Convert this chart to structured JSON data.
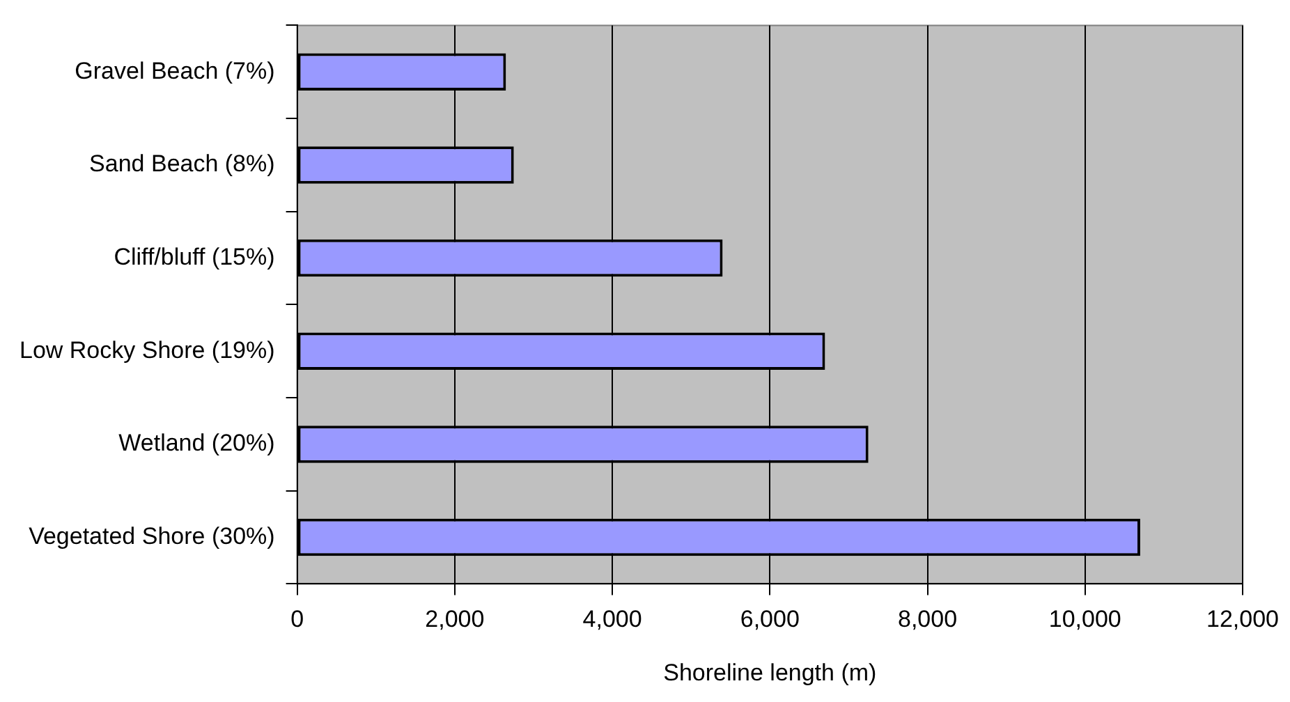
{
  "chart_data": {
    "type": "bar",
    "orientation": "horizontal",
    "xlabel": "Shoreline length (m)",
    "categories": [
      "Gravel Beach (7%)",
      "Sand Beach (8%)",
      "Cliff/bluff (15%)",
      "Low Rocky Shore (19%)",
      "Wetland (20%)",
      "Vegetated Shore (30%)"
    ],
    "values": [
      2650,
      2750,
      5400,
      6700,
      7250,
      10700
    ],
    "color": "#9999ff",
    "xlim": [
      0,
      12000
    ],
    "xticks": [
      {
        "value": 0,
        "label": "0"
      },
      {
        "value": 2000,
        "label": "2,000"
      },
      {
        "value": 4000,
        "label": "4,000"
      },
      {
        "value": 6000,
        "label": "6,000"
      },
      {
        "value": 8000,
        "label": "8,000"
      },
      {
        "value": 10000,
        "label": "10,000"
      },
      {
        "value": 12000,
        "label": "12,000"
      }
    ],
    "grid": "x",
    "legend": false
  }
}
